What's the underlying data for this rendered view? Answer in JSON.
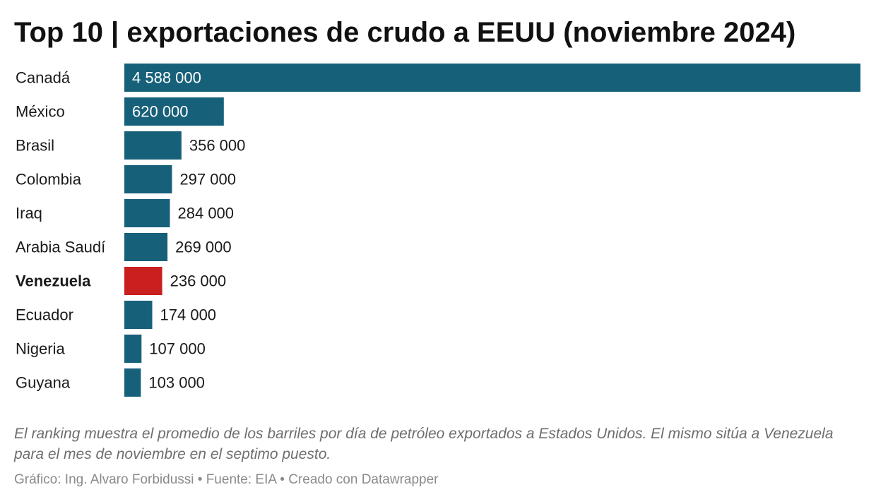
{
  "header": {
    "title": "Top 10 | exportaciones de crudo a EEUU (noviembre 2024)"
  },
  "chart_data": {
    "type": "bar",
    "orientation": "horizontal",
    "title": "Top 10 | exportaciones de crudo a EEUU (noviembre 2024)",
    "xlabel": "",
    "ylabel": "",
    "grid": false,
    "legend": "none",
    "xlim": [
      0,
      4588000
    ],
    "categories": [
      "Canadá",
      "México",
      "Brasil",
      "Colombia",
      "Iraq",
      "Arabia Saudí",
      "Venezuela",
      "Ecuador",
      "Nigeria",
      "Guyana"
    ],
    "values": [
      4588000,
      620000,
      356000,
      297000,
      284000,
      269000,
      236000,
      174000,
      107000,
      103000
    ],
    "value_labels": [
      "4 588 000",
      "620 000",
      "356 000",
      "297 000",
      "284 000",
      "269 000",
      "236 000",
      "174 000",
      "107 000",
      "103 000"
    ],
    "highlight": "Venezuela",
    "colors": {
      "bar": "#17607a",
      "highlight": "#c91f1f"
    }
  },
  "footer": {
    "note": "El ranking muestra el promedio de los barriles por día de petróleo exportados a Estados Unidos. El mismo sitúa a Venezuela para el mes de noviembre en el septimo puesto.",
    "credits": "Gráfico: Ing. Alvaro Forbidussi • Fuente: EIA • Creado con Datawrapper"
  }
}
